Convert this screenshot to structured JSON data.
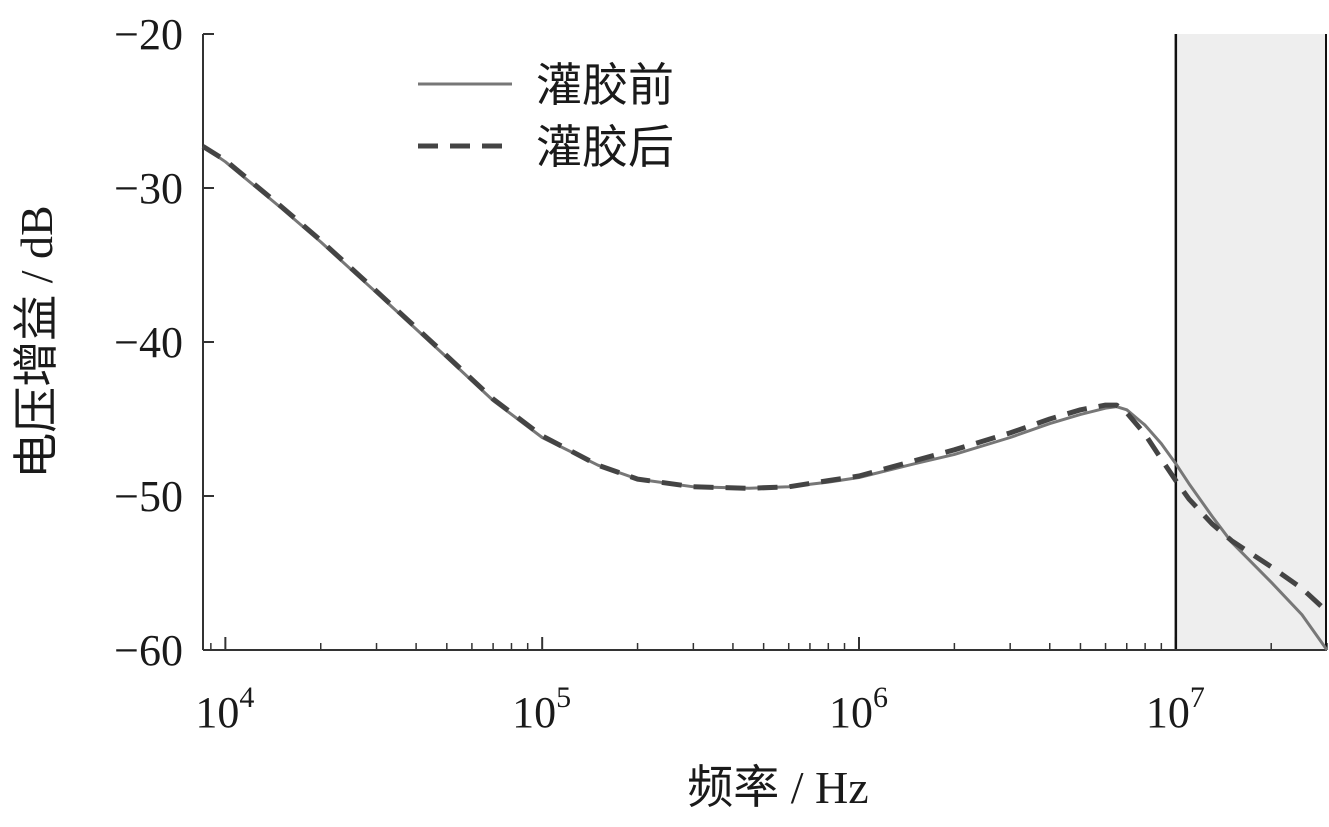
{
  "chart_data": {
    "type": "line",
    "xlabel": "频率 / Hz",
    "ylabel": "电压增益 / dB",
    "x_scale": "log",
    "xlim": [
      8500,
      30000000
    ],
    "ylim": [
      -60,
      -20
    ],
    "x_ticks": [
      {
        "value": 10000,
        "base": "10",
        "exp": "4"
      },
      {
        "value": 100000,
        "base": "10",
        "exp": "5"
      },
      {
        "value": 1000000,
        "base": "10",
        "exp": "6"
      },
      {
        "value": 10000000,
        "base": "10",
        "exp": "7"
      }
    ],
    "y_ticks": [
      {
        "value": -20,
        "label": "−20"
      },
      {
        "value": -30,
        "label": "−30"
      },
      {
        "value": -40,
        "label": "−40"
      },
      {
        "value": -50,
        "label": "−50"
      },
      {
        "value": -60,
        "label": "−60"
      }
    ],
    "grid": false,
    "legend_position": "top-left",
    "shaded_region": {
      "x_from": 10000000,
      "x_to": 30000000,
      "color": "#eeeeee"
    },
    "series": [
      {
        "name": "灌胶前",
        "style": "solid",
        "color": "#777777",
        "x": [
          8500,
          10000,
          15000,
          20000,
          30000,
          50000,
          70000,
          100000,
          150000,
          200000,
          300000,
          450000,
          600000,
          800000,
          1000000,
          1500000,
          2000000,
          3000000,
          4000000,
          5000000,
          6000000,
          6500000,
          7000000,
          8000000,
          9000000,
          10000000,
          11000000,
          13000000,
          15000000,
          20000000,
          25000000,
          30000000
        ],
        "y": [
          -27.3,
          -28.3,
          -31.3,
          -33.5,
          -36.8,
          -41.0,
          -43.8,
          -46.2,
          -48.0,
          -48.9,
          -49.4,
          -49.5,
          -49.4,
          -49.1,
          -48.8,
          -47.9,
          -47.3,
          -46.2,
          -45.3,
          -44.7,
          -44.3,
          -44.2,
          -44.4,
          -45.4,
          -46.6,
          -47.9,
          -49.2,
          -51.3,
          -53.0,
          -55.6,
          -57.7,
          -60.0
        ]
      },
      {
        "name": "灌胶后",
        "style": "dashed",
        "color": "#444444",
        "x": [
          8500,
          10000,
          15000,
          20000,
          30000,
          50000,
          70000,
          100000,
          150000,
          200000,
          300000,
          450000,
          600000,
          800000,
          1000000,
          1500000,
          2000000,
          3000000,
          4000000,
          5000000,
          6000000,
          6500000,
          7000000,
          8000000,
          9000000,
          10000000,
          11000000,
          13000000,
          15000000,
          20000000,
          25000000,
          30000000
        ],
        "y": [
          -27.3,
          -28.2,
          -31.2,
          -33.4,
          -36.7,
          -40.9,
          -43.7,
          -46.1,
          -48.0,
          -48.9,
          -49.4,
          -49.5,
          -49.4,
          -49.0,
          -48.7,
          -47.7,
          -47.0,
          -45.9,
          -45.0,
          -44.4,
          -44.1,
          -44.1,
          -44.6,
          -46.0,
          -47.6,
          -49.0,
          -50.2,
          -51.8,
          -52.9,
          -54.6,
          -56.0,
          -57.5
        ]
      }
    ]
  }
}
